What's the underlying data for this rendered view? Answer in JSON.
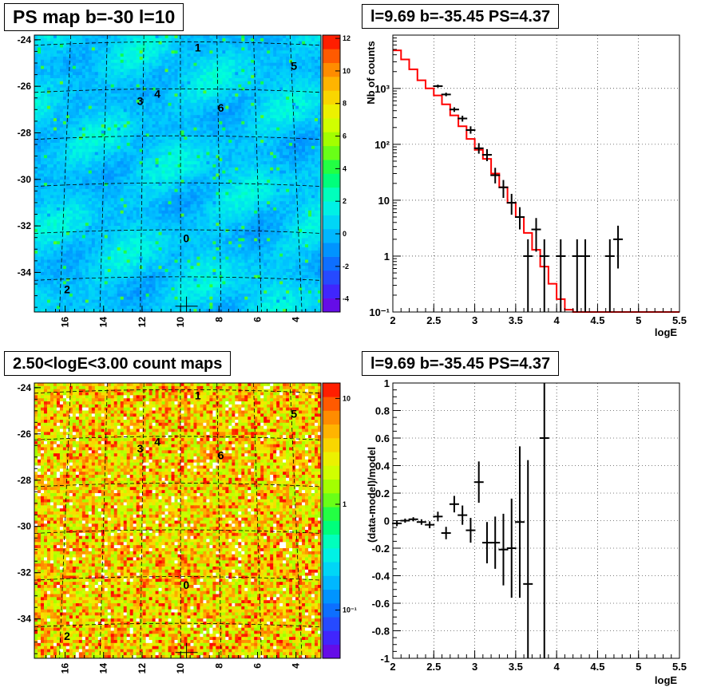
{
  "colors": {
    "frame": "#000000",
    "model_line": "#ff0000",
    "data_points": "#000000",
    "background": "#ffffff"
  },
  "chart_data": [
    {
      "id": "ps-map",
      "type": "heatmap",
      "title": "PS map b=-30 l=10",
      "x_ticks": [
        "16",
        "14",
        "12",
        "10",
        "8",
        "6",
        "4"
      ],
      "x_tick_values": [
        16,
        14,
        12,
        10,
        8,
        6,
        4
      ],
      "x_range": [
        17.6,
        2.7
      ],
      "y_ticks": [
        "-24",
        "-26",
        "-28",
        "-30",
        "-32",
        "-34"
      ],
      "y_tick_values": [
        -24,
        -26,
        -28,
        -30,
        -32,
        -34
      ],
      "y_range": [
        -35.7,
        -23.8
      ],
      "colorbar_ticks": [
        "12",
        "10",
        "8",
        "6",
        "4",
        "2",
        "0",
        "-2",
        "-4"
      ],
      "colorbar_tick_values": [
        12,
        10,
        8,
        6,
        4,
        2,
        0,
        -2,
        -4
      ],
      "colorbar_range": [
        -4.8,
        12.2
      ],
      "colorbar_scale": "linear",
      "source_labels": [
        {
          "text": "0",
          "l": 9.7,
          "b": -32.7
        },
        {
          "text": "1",
          "l": 9.1,
          "b": -24.5
        },
        {
          "text": "2",
          "l": 15.9,
          "b": -34.9
        },
        {
          "text": "3",
          "l": 12.1,
          "b": -26.8
        },
        {
          "text": "4",
          "l": 11.2,
          "b": -26.5
        },
        {
          "text": "5",
          "l": 4.1,
          "b": -25.3
        },
        {
          "text": "6",
          "l": 7.9,
          "b": -27.1
        }
      ],
      "marker": {
        "l": 9.69,
        "b": -35.45,
        "shape": "cross"
      },
      "grid": "curved dashed graticule"
    },
    {
      "id": "spectrum",
      "type": "line",
      "title": "l=9.69 b=-35.45 PS=4.37",
      "xlabel": "logE",
      "ylabel": "Nb of counts",
      "xlim": [
        2,
        5.5
      ],
      "x_ticks": [
        "2",
        "2.5",
        "3",
        "3.5",
        "4",
        "4.5",
        "5",
        "5.5"
      ],
      "x_tick_values": [
        2,
        2.5,
        3,
        3.5,
        4,
        4.5,
        5,
        5.5
      ],
      "yscale": "log",
      "ylim": [
        0.1,
        9000
      ],
      "y_ticks": [
        "10⁻¹",
        "1",
        "10",
        "10²",
        "10³"
      ],
      "y_tick_values": [
        0.1,
        1,
        10,
        100,
        1000
      ],
      "grid": true,
      "series": [
        {
          "style": "step",
          "color": "#ff0000",
          "bin_edges": [
            2,
            2.1,
            2.2,
            2.3,
            2.4,
            2.5,
            2.6,
            2.7,
            2.8,
            2.9,
            3.0,
            3.1,
            3.2,
            3.3,
            3.4,
            3.5,
            3.6,
            3.7,
            3.8,
            3.9,
            4.0,
            4.1,
            4.2,
            5.5
          ],
          "values": [
            4800,
            3300,
            2200,
            1400,
            1000,
            750,
            520,
            330,
            210,
            125,
            80,
            55,
            30,
            17,
            9,
            5,
            2.6,
            1.3,
            0.65,
            0.32,
            0.17,
            0.11,
            0.1
          ]
        },
        {
          "style": "errorbar",
          "color": "#000000",
          "x": [
            2.55,
            2.65,
            2.75,
            2.85,
            2.95,
            3.05,
            3.15,
            3.25,
            3.35,
            3.45,
            3.55,
            3.65,
            3.75,
            3.85,
            4.05,
            4.25,
            4.35,
            4.65,
            4.75
          ],
          "y": [
            1100,
            780,
            420,
            290,
            180,
            85,
            65,
            28,
            17,
            9,
            5,
            1,
            3,
            1,
            1,
            1,
            1,
            1,
            2
          ],
          "y_low": [
            1035,
            725,
            380,
            255,
            155,
            68,
            50,
            20,
            11,
            5.5,
            3,
            0.1,
            1.2,
            0.1,
            0.1,
            0.1,
            0.1,
            0.1,
            0.6
          ],
          "y_high": [
            1170,
            840,
            460,
            325,
            210,
            105,
            82,
            38,
            23,
            13,
            7.5,
            2,
            4.8,
            2,
            2,
            2,
            2,
            2,
            3.5
          ]
        }
      ]
    },
    {
      "id": "count-map",
      "type": "heatmap",
      "title": "2.50<logE<3.00 count maps",
      "x_ticks": [
        "16",
        "14",
        "12",
        "10",
        "8",
        "6",
        "4"
      ],
      "x_tick_values": [
        16,
        14,
        12,
        10,
        8,
        6,
        4
      ],
      "x_range": [
        17.6,
        2.7
      ],
      "y_ticks": [
        "-24",
        "-26",
        "-28",
        "-30",
        "-32",
        "-34"
      ],
      "y_tick_values": [
        -24,
        -26,
        -28,
        -30,
        -32,
        -34
      ],
      "y_range": [
        -35.7,
        -23.8
      ],
      "colorbar_ticks": [
        "10",
        "1",
        "10⁻¹"
      ],
      "colorbar_tick_values": [
        10,
        1,
        0.1
      ],
      "colorbar_range": [
        0.035,
        14
      ],
      "colorbar_scale": "log",
      "source_labels": [
        {
          "text": "0",
          "l": 9.7,
          "b": -32.7
        },
        {
          "text": "1",
          "l": 9.1,
          "b": -24.5
        },
        {
          "text": "2",
          "l": 15.9,
          "b": -34.9
        },
        {
          "text": "3",
          "l": 12.1,
          "b": -26.8
        },
        {
          "text": "4",
          "l": 11.2,
          "b": -26.5
        },
        {
          "text": "5",
          "l": 4.1,
          "b": -25.3
        },
        {
          "text": "6",
          "l": 7.9,
          "b": -27.1
        }
      ],
      "marker": {
        "l": 9.69,
        "b": -35.45,
        "shape": "cross"
      },
      "grid": "curved dashed graticule"
    },
    {
      "id": "residuals",
      "type": "scatter",
      "title": "l=9.69 b=-35.45 PS=4.37",
      "xlabel": "logE",
      "ylabel": "(data-model)/model",
      "xlim": [
        2,
        5.5
      ],
      "x_ticks": [
        "2",
        "2.5",
        "3",
        "3.5",
        "4",
        "4.5",
        "5",
        "5.5"
      ],
      "x_tick_values": [
        2,
        2.5,
        3,
        3.5,
        4,
        4.5,
        5,
        5.5
      ],
      "ylim": [
        -1,
        1
      ],
      "y_ticks": [
        "1",
        "0.8",
        "0.6",
        "0.4",
        "0.2",
        "0",
        "-0.2",
        "-0.4",
        "-0.6",
        "-0.8",
        "-1"
      ],
      "y_tick_values": [
        1,
        0.8,
        0.6,
        0.4,
        0.2,
        0,
        -0.2,
        -0.4,
        -0.6,
        -0.8,
        -1
      ],
      "grid": true,
      "series": [
        {
          "style": "errorbar",
          "color": "#000000",
          "x": [
            2.05,
            2.15,
            2.25,
            2.35,
            2.45,
            2.55,
            2.65,
            2.75,
            2.85,
            2.95,
            3.05,
            3.15,
            3.25,
            3.35,
            3.45,
            3.55,
            3.65,
            3.85
          ],
          "y": [
            -0.02,
            0.0,
            0.01,
            -0.01,
            -0.03,
            0.03,
            -0.09,
            0.12,
            0.04,
            -0.07,
            0.28,
            -0.16,
            -0.16,
            -0.21,
            -0.2,
            -0.01,
            -0.46,
            0.6
          ],
          "yerr": [
            0.02,
            0.015,
            0.015,
            0.02,
            0.025,
            0.035,
            0.045,
            0.06,
            0.07,
            0.09,
            0.15,
            0.15,
            0.19,
            0.26,
            0.36,
            0.55,
            0.9,
            1.7
          ]
        }
      ]
    }
  ]
}
